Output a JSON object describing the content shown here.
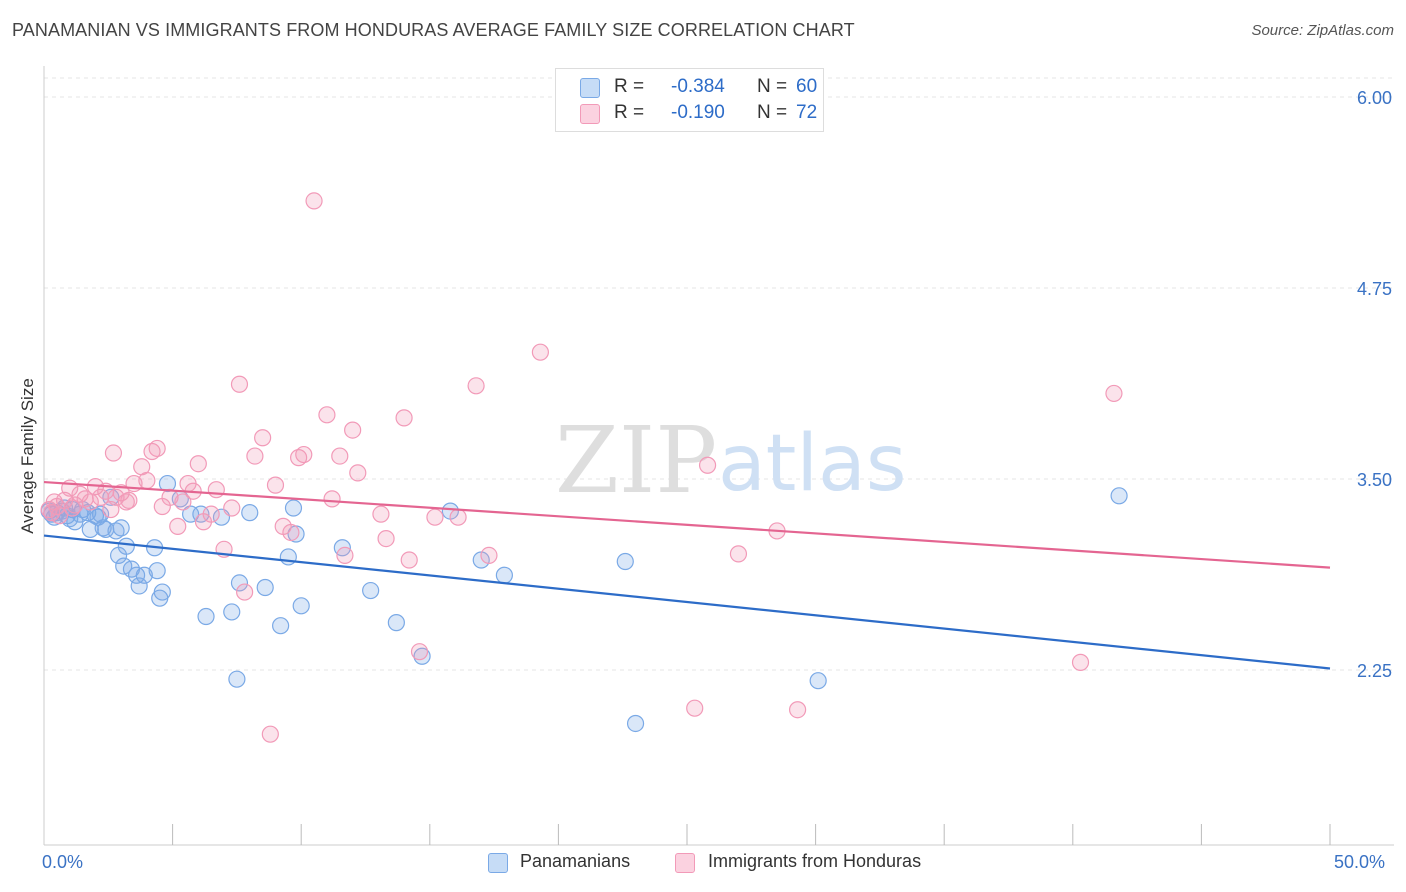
{
  "title": "PANAMANIAN VS IMMIGRANTS FROM HONDURAS AVERAGE FAMILY SIZE CORRELATION CHART",
  "source": "Source: ZipAtlas.com",
  "watermark": {
    "zip": "ZIP",
    "atlas": "atlas"
  },
  "legend_top": {
    "rows": [
      {
        "r_label": "R = ",
        "r_value": "-0.384",
        "n_label": "N = ",
        "n_value": "60"
      },
      {
        "r_label": "R = ",
        "r_value": "-0.190",
        "n_label": "N = ",
        "n_value": "72"
      }
    ]
  },
  "legend_bottom": [
    "Panamanians",
    "Immigrants from Honduras"
  ],
  "colors": {
    "blue": "#7aa9e6",
    "blue_line": "#2d6cc8",
    "pink": "#f29ab8",
    "pink_line": "#e46591",
    "tick_text": "#3a72c4"
  },
  "chart_data": {
    "type": "scatter",
    "title": "PANAMANIAN VS IMMIGRANTS FROM HONDURAS AVERAGE FAMILY SIZE CORRELATION CHART",
    "xlabel": "",
    "ylabel": "Average Family Size",
    "xlim": [
      0,
      50
    ],
    "ylim": [
      1.0,
      6.1
    ],
    "x_tick_labels": [
      "0.0%",
      "50.0%"
    ],
    "y_ticks": [
      2.25,
      3.5,
      4.75,
      6.0
    ],
    "y_tick_labels": [
      "2.25",
      "3.50",
      "4.75",
      "6.00"
    ],
    "series": [
      {
        "name": "Panamanians",
        "color": "#7aa9e6",
        "trend": {
          "x": [
            0,
            50
          ],
          "y": [
            3.13,
            2.26
          ]
        },
        "points": [
          [
            0.3,
            3.27
          ],
          [
            0.5,
            3.28
          ],
          [
            0.7,
            3.29
          ],
          [
            0.9,
            3.26
          ],
          [
            1.1,
            3.3
          ],
          [
            1.2,
            3.22
          ],
          [
            1.4,
            3.27
          ],
          [
            1.5,
            3.3
          ],
          [
            1.7,
            3.28
          ],
          [
            1.8,
            3.17
          ],
          [
            2.0,
            3.26
          ],
          [
            2.1,
            3.25
          ],
          [
            2.3,
            3.18
          ],
          [
            2.4,
            3.17
          ],
          [
            2.6,
            3.38
          ],
          [
            2.8,
            3.16
          ],
          [
            2.9,
            3.0
          ],
          [
            3.1,
            2.93
          ],
          [
            3.2,
            3.06
          ],
          [
            3.4,
            2.91
          ],
          [
            3.6,
            2.87
          ],
          [
            3.7,
            2.8
          ],
          [
            3.9,
            2.87
          ],
          [
            4.3,
            3.05
          ],
          [
            4.5,
            2.72
          ],
          [
            4.4,
            2.9
          ],
          [
            4.6,
            2.76
          ],
          [
            4.8,
            3.47
          ],
          [
            5.3,
            3.37
          ],
          [
            5.7,
            3.27
          ],
          [
            6.3,
            2.6
          ],
          [
            6.9,
            3.25
          ],
          [
            7.3,
            2.63
          ],
          [
            7.5,
            2.19
          ],
          [
            7.6,
            2.82
          ],
          [
            8.0,
            3.28
          ],
          [
            8.6,
            2.79
          ],
          [
            9.2,
            2.54
          ],
          [
            9.5,
            2.99
          ],
          [
            9.7,
            3.31
          ],
          [
            9.8,
            3.14
          ],
          [
            10.0,
            2.67
          ],
          [
            11.6,
            3.05
          ],
          [
            12.7,
            2.77
          ],
          [
            13.7,
            2.56
          ],
          [
            14.7,
            2.34
          ],
          [
            15.8,
            3.29
          ],
          [
            17.0,
            2.97
          ],
          [
            17.9,
            2.87
          ],
          [
            22.6,
            2.96
          ],
          [
            23.0,
            1.9
          ],
          [
            30.1,
            2.18
          ],
          [
            41.8,
            3.39
          ],
          [
            0.2,
            3.29
          ],
          [
            0.4,
            3.25
          ],
          [
            0.8,
            3.31
          ],
          [
            1.0,
            3.24
          ],
          [
            3.0,
            3.18
          ],
          [
            2.2,
            3.27
          ],
          [
            6.1,
            3.27
          ]
        ]
      },
      {
        "name": "Immigrants from Honduras",
        "color": "#f29ab8",
        "trend": {
          "x": [
            0,
            50
          ],
          "y": [
            3.48,
            2.92
          ]
        },
        "points": [
          [
            0.2,
            3.3
          ],
          [
            0.4,
            3.35
          ],
          [
            0.6,
            3.26
          ],
          [
            0.8,
            3.36
          ],
          [
            1.0,
            3.44
          ],
          [
            1.2,
            3.33
          ],
          [
            1.4,
            3.4
          ],
          [
            1.6,
            3.37
          ],
          [
            1.8,
            3.35
          ],
          [
            2.0,
            3.45
          ],
          [
            2.2,
            3.38
          ],
          [
            2.4,
            3.42
          ],
          [
            2.6,
            3.3
          ],
          [
            2.7,
            3.67
          ],
          [
            2.8,
            3.38
          ],
          [
            3.0,
            3.41
          ],
          [
            3.2,
            3.35
          ],
          [
            3.5,
            3.47
          ],
          [
            3.8,
            3.58
          ],
          [
            4.0,
            3.49
          ],
          [
            4.2,
            3.68
          ],
          [
            4.4,
            3.7
          ],
          [
            4.6,
            3.32
          ],
          [
            4.9,
            3.38
          ],
          [
            5.2,
            3.19
          ],
          [
            5.6,
            3.47
          ],
          [
            5.8,
            3.42
          ],
          [
            6.0,
            3.6
          ],
          [
            6.2,
            3.22
          ],
          [
            6.5,
            3.27
          ],
          [
            6.7,
            3.43
          ],
          [
            7.0,
            3.04
          ],
          [
            7.3,
            3.31
          ],
          [
            7.6,
            4.12
          ],
          [
            7.8,
            2.76
          ],
          [
            8.2,
            3.65
          ],
          [
            8.5,
            3.77
          ],
          [
            8.8,
            1.83
          ],
          [
            9.0,
            3.46
          ],
          [
            9.3,
            3.19
          ],
          [
            9.6,
            3.15
          ],
          [
            9.9,
            3.64
          ],
          [
            10.1,
            3.66
          ],
          [
            10.5,
            5.32
          ],
          [
            11.0,
            3.92
          ],
          [
            11.2,
            3.37
          ],
          [
            11.5,
            3.65
          ],
          [
            11.7,
            3.0
          ],
          [
            12.0,
            3.82
          ],
          [
            12.2,
            3.54
          ],
          [
            13.1,
            3.27
          ],
          [
            13.3,
            3.11
          ],
          [
            14.0,
            3.9
          ],
          [
            14.2,
            2.97
          ],
          [
            14.6,
            2.37
          ],
          [
            15.2,
            3.25
          ],
          [
            16.1,
            3.25
          ],
          [
            16.8,
            4.11
          ],
          [
            17.3,
            3.0
          ],
          [
            19.3,
            4.33
          ],
          [
            25.3,
            2.0
          ],
          [
            25.8,
            3.59
          ],
          [
            27.0,
            3.01
          ],
          [
            28.5,
            3.16
          ],
          [
            29.3,
            1.99
          ],
          [
            40.3,
            2.3
          ],
          [
            41.6,
            4.06
          ],
          [
            0.3,
            3.28
          ],
          [
            0.5,
            3.32
          ],
          [
            1.1,
            3.31
          ],
          [
            3.3,
            3.36
          ],
          [
            5.4,
            3.35
          ]
        ]
      }
    ]
  }
}
